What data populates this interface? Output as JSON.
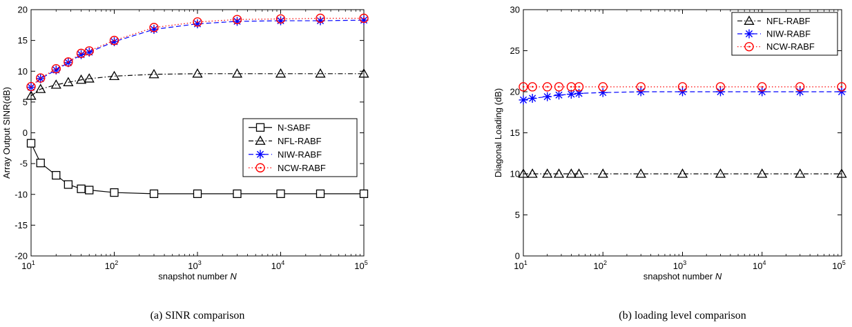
{
  "chart_data": [
    {
      "type": "line",
      "caption": "(a) SINR comparison",
      "xlabel": "snapshot number N",
      "ylabel": "Array Output SINR(dB)",
      "xscale": "log",
      "xlim": [
        10,
        100000
      ],
      "ylim": [
        -20,
        20
      ],
      "xticks": [
        10,
        100,
        1000,
        10000,
        100000
      ],
      "yticks": [
        -20,
        -15,
        -10,
        -5,
        0,
        5,
        10,
        15,
        20
      ],
      "legend_position": "center-right",
      "grid": false,
      "x": [
        10,
        13,
        20,
        28,
        40,
        50,
        100,
        300,
        1000,
        3000,
        10000,
        30000,
        100000
      ],
      "series": [
        {
          "name": "N-SABF",
          "color": "#000000",
          "marker": "square",
          "dash": "solid",
          "values": [
            -1.7,
            -4.9,
            -6.9,
            -8.4,
            -9.1,
            -9.3,
            -9.7,
            -9.9,
            -9.9,
            -9.9,
            -9.9,
            -9.9,
            -9.9
          ]
        },
        {
          "name": "NFL-RABF",
          "color": "#000000",
          "marker": "triangle",
          "dash": "dashdot",
          "values": [
            6.0,
            7.1,
            7.8,
            8.2,
            8.6,
            8.8,
            9.2,
            9.5,
            9.6,
            9.6,
            9.6,
            9.6,
            9.6
          ]
        },
        {
          "name": "NIW-RABF",
          "color": "#0000ff",
          "marker": "asterisk",
          "dash": "dashed",
          "values": [
            7.4,
            8.8,
            10.2,
            11.4,
            12.7,
            13.1,
            14.8,
            16.8,
            17.7,
            18.1,
            18.2,
            18.2,
            18.3
          ]
        },
        {
          "name": "NCW-RABF",
          "color": "#ff0000",
          "marker": "circle",
          "dash": "dotted",
          "values": [
            7.5,
            8.9,
            10.4,
            11.5,
            12.9,
            13.3,
            15.0,
            17.1,
            18.0,
            18.4,
            18.5,
            18.6,
            18.6
          ]
        }
      ]
    },
    {
      "type": "line",
      "caption": "(b) loading level comparison",
      "xlabel": "snapshot number N",
      "ylabel": "Diagonal Loading (dB)",
      "xscale": "log",
      "xlim": [
        10,
        100000
      ],
      "ylim": [
        0,
        30
      ],
      "xticks": [
        10,
        100,
        1000,
        10000,
        100000
      ],
      "yticks": [
        0,
        5,
        10,
        15,
        20,
        25,
        30
      ],
      "legend_position": "top-right",
      "grid": false,
      "x": [
        10,
        13,
        20,
        28,
        40,
        50,
        100,
        300,
        1000,
        3000,
        10000,
        30000,
        100000
      ],
      "series": [
        {
          "name": "NFL-RABF",
          "color": "#000000",
          "marker": "triangle",
          "dash": "dashdot",
          "values": [
            10,
            10,
            10,
            10,
            10,
            10,
            10,
            10,
            10,
            10,
            10,
            10,
            10
          ]
        },
        {
          "name": "NIW-RABF",
          "color": "#0000ff",
          "marker": "asterisk",
          "dash": "dashed",
          "values": [
            19.0,
            19.2,
            19.4,
            19.6,
            19.7,
            19.8,
            19.9,
            20.0,
            20.0,
            20.0,
            20.0,
            20.0,
            20.0
          ]
        },
        {
          "name": "NCW-RABF",
          "color": "#ff0000",
          "marker": "circle",
          "dash": "dotted",
          "values": [
            20.6,
            20.6,
            20.6,
            20.6,
            20.6,
            20.6,
            20.6,
            20.6,
            20.6,
            20.6,
            20.6,
            20.6,
            20.6
          ]
        }
      ]
    }
  ]
}
